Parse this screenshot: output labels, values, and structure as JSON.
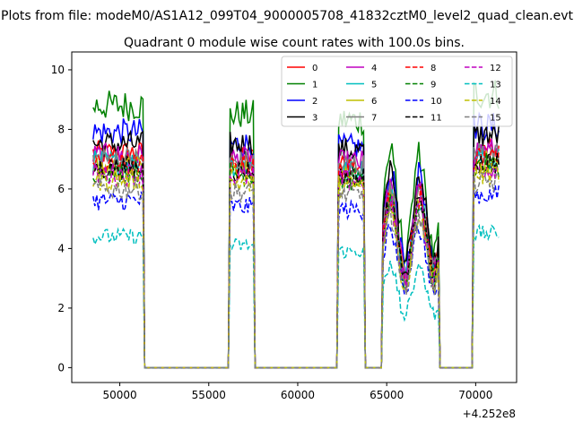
{
  "figure": {
    "suptitle": "Plots from file: modeM0/AS1A12_099T04_9000005708_41832cztM0_level2_quad_clean.evt",
    "title": "Quadrant 0 module wise count rates with 100.0s bins.",
    "offset_text": "+4.252e8"
  },
  "chart_data": {
    "type": "line",
    "title": "Quadrant 0 module wise count rates with 100.0s bins.",
    "xlabel": "",
    "ylabel": "",
    "x_offset": 425200000,
    "xlim": [
      47300,
      72300
    ],
    "ylim": [
      -0.5,
      10.6
    ],
    "xticks": [
      50000,
      55000,
      60000,
      65000,
      70000
    ],
    "xtick_labels": [
      "50000",
      "55000",
      "60000",
      "65000",
      "70000"
    ],
    "yticks": [
      0,
      2,
      4,
      6,
      8,
      10
    ],
    "ytick_labels": [
      "0",
      "2",
      "4",
      "6",
      "8",
      "10"
    ],
    "grid": false,
    "legend_position": "top-right",
    "legend_columns": 4,
    "segments": [
      {
        "start": 48500,
        "end": 51300
      },
      {
        "start": 56200,
        "end": 57500
      },
      {
        "start": 62300,
        "end": 63700
      },
      {
        "start": 64800,
        "end": 67900
      },
      {
        "start": 69900,
        "end": 71300
      }
    ],
    "gap_value": 0,
    "series": [
      {
        "name": "0",
        "color": "#ff0000",
        "dash": "solid",
        "levels": [
          7.2,
          7.0,
          6.8,
          4.5,
          7.3
        ]
      },
      {
        "name": "1",
        "color": "#008000",
        "dash": "solid",
        "levels": [
          8.8,
          8.5,
          8.3,
          5.5,
          9.2
        ]
      },
      {
        "name": "2",
        "color": "#0000ff",
        "dash": "solid",
        "levels": [
          7.9,
          7.5,
          7.4,
          5.0,
          8.1
        ]
      },
      {
        "name": "3",
        "color": "#000000",
        "dash": "solid",
        "levels": [
          7.5,
          7.5,
          7.3,
          5.0,
          7.8
        ]
      },
      {
        "name": "4",
        "color": "#bf00bf",
        "dash": "solid",
        "levels": [
          7.1,
          7.0,
          6.9,
          4.6,
          7.3
        ]
      },
      {
        "name": "5",
        "color": "#00bfbf",
        "dash": "solid",
        "levels": [
          6.9,
          6.8,
          6.6,
          4.4,
          7.0
        ]
      },
      {
        "name": "6",
        "color": "#bfbf00",
        "dash": "solid",
        "levels": [
          6.7,
          6.6,
          6.4,
          4.3,
          6.9
        ]
      },
      {
        "name": "7",
        "color": "#808080",
        "dash": "solid",
        "levels": [
          7.0,
          6.9,
          6.8,
          4.5,
          7.2
        ]
      },
      {
        "name": "8",
        "color": "#ff0000",
        "dash": "dashed",
        "levels": [
          6.8,
          6.7,
          6.6,
          4.4,
          7.0
        ]
      },
      {
        "name": "9",
        "color": "#008000",
        "dash": "dashed",
        "levels": [
          6.6,
          6.5,
          6.3,
          4.2,
          6.8
        ]
      },
      {
        "name": "10",
        "color": "#0000ff",
        "dash": "dashed",
        "levels": [
          5.6,
          5.4,
          5.3,
          3.6,
          5.8
        ]
      },
      {
        "name": "11",
        "color": "#000000",
        "dash": "dashed",
        "levels": [
          6.7,
          6.6,
          6.4,
          4.3,
          6.9
        ]
      },
      {
        "name": "12",
        "color": "#bf00bf",
        "dash": "dashed",
        "levels": [
          6.5,
          6.4,
          6.3,
          4.2,
          6.7
        ]
      },
      {
        "name": "13",
        "color": "#00bfbf",
        "dash": "dashed",
        "levels": [
          4.4,
          4.1,
          3.9,
          2.6,
          4.5
        ]
      },
      {
        "name": "14",
        "color": "#bfbf00",
        "dash": "dashed",
        "levels": [
          6.3,
          6.2,
          6.1,
          4.0,
          6.5
        ]
      },
      {
        "name": "15",
        "color": "#808080",
        "dash": "dashed",
        "levels": [
          6.0,
          5.9,
          5.8,
          3.9,
          6.2
        ]
      }
    ]
  }
}
